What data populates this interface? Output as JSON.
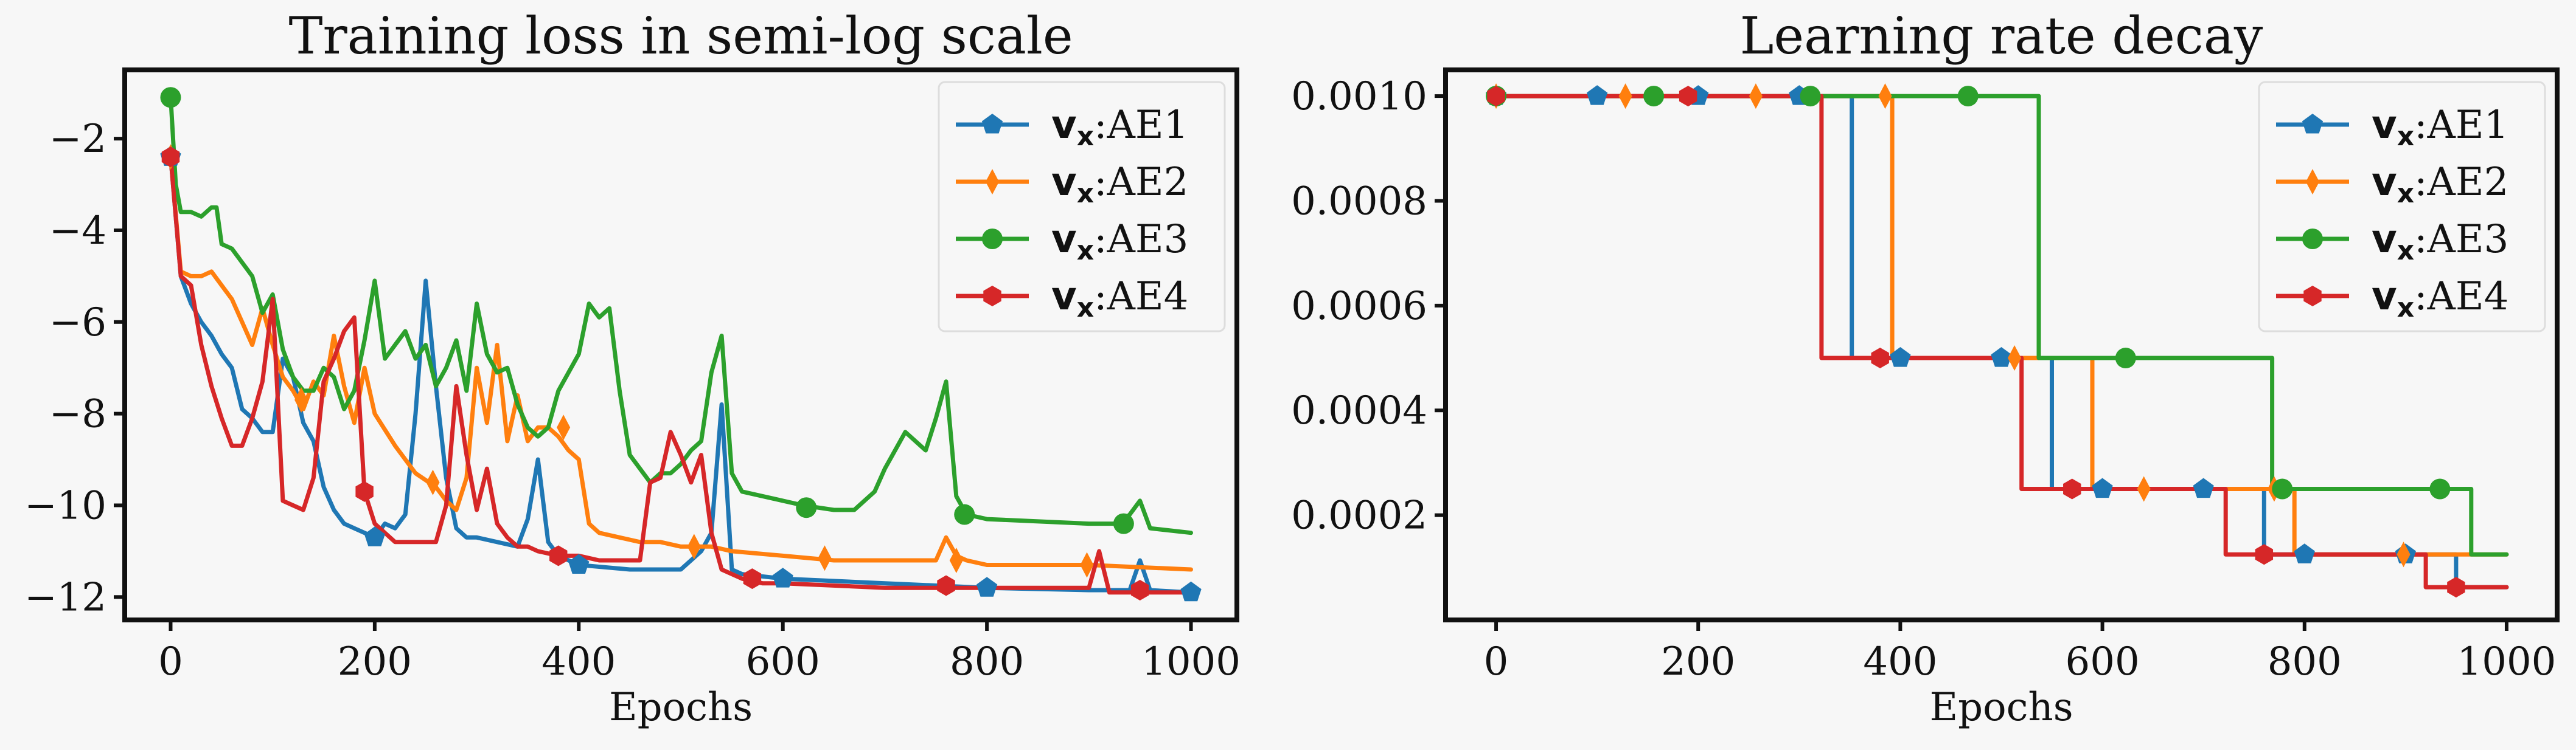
{
  "colors": {
    "AE1": "#1f77b4",
    "AE2": "#ff7f0e",
    "AE3": "#2ca02c",
    "AE4": "#d62728",
    "background": "#f7f7f7"
  },
  "chart_data": [
    {
      "type": "line",
      "title": "Training loss in semi-log scale",
      "xlabel": "Epochs",
      "ylabel": "",
      "xlim": [
        -45,
        1045
      ],
      "ylim": [
        -12.5,
        -0.5
      ],
      "xticks": [
        0,
        200,
        400,
        600,
        800,
        1000
      ],
      "yticks": [
        -12,
        -10,
        -8,
        -6,
        -4,
        -2
      ],
      "xtick_labels": [
        "0",
        "200",
        "400",
        "600",
        "800",
        "1000"
      ],
      "ytick_labels": [
        "−12",
        "−10",
        "−8",
        "−6",
        "−4",
        "−2"
      ],
      "grid": false,
      "legend": "top-right",
      "series": [
        {
          "name": "AE1",
          "legend_bold": "v",
          "legend_sub": "x",
          "legend_text": ":AE1",
          "marker": "pentagon",
          "color": "#1f77b4",
          "x": [
            0,
            10,
            20,
            30,
            40,
            50,
            60,
            70,
            80,
            90,
            100,
            110,
            120,
            130,
            140,
            150,
            160,
            170,
            180,
            190,
            200,
            210,
            220,
            230,
            240,
            250,
            260,
            270,
            280,
            290,
            300,
            320,
            340,
            350,
            360,
            370,
            380,
            400,
            450,
            500,
            520,
            530,
            540,
            550,
            560,
            600,
            700,
            800,
            900,
            940,
            950,
            960,
            1000
          ],
          "y": [
            -2.4,
            -5.0,
            -5.6,
            -6.0,
            -6.3,
            -6.7,
            -7.0,
            -7.9,
            -8.1,
            -8.4,
            -8.4,
            -6.8,
            -7.2,
            -8.2,
            -8.6,
            -9.6,
            -10.1,
            -10.4,
            -10.5,
            -10.6,
            -10.7,
            -10.4,
            -10.5,
            -10.2,
            -8.0,
            -5.1,
            -7.4,
            -9.4,
            -10.5,
            -10.7,
            -10.7,
            -10.8,
            -10.9,
            -10.3,
            -9.0,
            -10.8,
            -11.1,
            -11.3,
            -11.4,
            -11.4,
            -11.0,
            -10.6,
            -7.8,
            -11.4,
            -11.5,
            -11.6,
            -11.7,
            -11.8,
            -11.85,
            -11.85,
            -11.2,
            -11.85,
            -11.9
          ],
          "marker_x": [
            0,
            200,
            400,
            600,
            800,
            1000
          ],
          "marker_y": [
            -2.4,
            -10.7,
            -11.3,
            -11.6,
            -11.8,
            -11.9
          ]
        },
        {
          "name": "AE2",
          "legend_bold": "v",
          "legend_sub": "x",
          "legend_text": ":AE2",
          "marker": "diamond",
          "color": "#ff7f0e",
          "x": [
            0,
            10,
            20,
            30,
            40,
            50,
            60,
            70,
            80,
            90,
            100,
            110,
            120,
            130,
            140,
            150,
            160,
            170,
            180,
            190,
            200,
            220,
            240,
            260,
            270,
            280,
            290,
            300,
            310,
            320,
            330,
            340,
            350,
            360,
            370,
            380,
            390,
            400,
            410,
            420,
            440,
            460,
            480,
            500,
            530,
            550,
            600,
            650,
            700,
            750,
            760,
            770,
            780,
            800,
            900,
            1000
          ],
          "y": [
            -2.4,
            -4.9,
            -5.0,
            -5.0,
            -4.9,
            -5.2,
            -5.5,
            -6.0,
            -6.5,
            -5.7,
            -6.5,
            -7.2,
            -7.5,
            -7.9,
            -7.3,
            -7.6,
            -6.3,
            -7.4,
            -8.2,
            -7.0,
            -8.0,
            -8.7,
            -9.3,
            -9.6,
            -9.9,
            -10.1,
            -9.4,
            -7.0,
            -8.2,
            -6.5,
            -8.6,
            -7.6,
            -8.6,
            -8.3,
            -8.3,
            -8.5,
            -8.8,
            -9.0,
            -10.4,
            -10.6,
            -10.7,
            -10.8,
            -10.8,
            -10.9,
            -10.9,
            -11.0,
            -11.1,
            -11.2,
            -11.2,
            -11.2,
            -10.7,
            -11.1,
            -11.2,
            -11.3,
            -11.3,
            -11.4
          ],
          "marker_x": [
            0,
            128,
            257,
            385,
            513,
            641,
            770,
            898
          ],
          "marker_y": [
            -2.4,
            -7.7,
            -9.5,
            -8.3,
            -10.9,
            -11.15,
            -11.2,
            -11.3
          ]
        },
        {
          "name": "AE3",
          "legend_bold": "v",
          "legend_sub": "x",
          "legend_text": ":AE3",
          "marker": "circle",
          "color": "#2ca02c",
          "x": [
            0,
            5,
            10,
            20,
            30,
            40,
            45,
            50,
            60,
            70,
            80,
            90,
            100,
            110,
            120,
            130,
            140,
            150,
            160,
            170,
            180,
            190,
            200,
            210,
            220,
            230,
            240,
            250,
            260,
            270,
            280,
            290,
            300,
            310,
            320,
            330,
            340,
            350,
            360,
            370,
            380,
            400,
            410,
            420,
            430,
            440,
            450,
            460,
            470,
            480,
            490,
            500,
            510,
            520,
            530,
            540,
            550,
            560,
            600,
            620,
            650,
            670,
            690,
            700,
            720,
            740,
            750,
            760,
            770,
            780,
            800,
            900,
            930,
            940,
            950,
            960,
            1000
          ],
          "y": [
            -1.1,
            -3.0,
            -3.6,
            -3.6,
            -3.7,
            -3.5,
            -3.5,
            -4.3,
            -4.4,
            -4.7,
            -5.0,
            -5.8,
            -5.4,
            -6.6,
            -7.2,
            -7.5,
            -7.5,
            -7.0,
            -7.2,
            -7.9,
            -7.5,
            -6.4,
            -5.1,
            -6.8,
            -6.5,
            -6.2,
            -6.8,
            -6.5,
            -7.4,
            -7.0,
            -6.4,
            -7.5,
            -5.6,
            -6.7,
            -7.1,
            -7.0,
            -7.8,
            -8.3,
            -8.5,
            -8.3,
            -7.5,
            -6.7,
            -5.6,
            -5.9,
            -5.7,
            -7.5,
            -8.9,
            -9.2,
            -9.5,
            -9.3,
            -9.3,
            -9.1,
            -8.8,
            -8.6,
            -7.1,
            -6.3,
            -9.3,
            -9.7,
            -9.9,
            -10.0,
            -10.1,
            -10.1,
            -9.7,
            -9.2,
            -8.4,
            -8.8,
            -8.1,
            -7.3,
            -9.8,
            -10.2,
            -10.3,
            -10.4,
            -10.4,
            -10.2,
            -9.9,
            -10.5,
            -10.6
          ],
          "marker_x": [
            0,
            623,
            778,
            934
          ],
          "marker_y": [
            -1.1,
            -10.05,
            -10.2,
            -10.4
          ]
        },
        {
          "name": "AE4",
          "legend_bold": "v",
          "legend_sub": "x",
          "legend_text": ":AE4",
          "marker": "hexagon",
          "color": "#d62728",
          "x": [
            0,
            10,
            20,
            30,
            40,
            50,
            60,
            70,
            80,
            90,
            100,
            110,
            120,
            130,
            140,
            150,
            160,
            170,
            180,
            190,
            200,
            220,
            240,
            260,
            270,
            280,
            290,
            300,
            310,
            320,
            330,
            340,
            350,
            360,
            380,
            400,
            420,
            440,
            460,
            470,
            480,
            490,
            500,
            510,
            520,
            530,
            540,
            560,
            580,
            600,
            700,
            800,
            900,
            910,
            920,
            930,
            1000
          ],
          "y": [
            -2.4,
            -5.0,
            -5.2,
            -6.5,
            -7.4,
            -8.1,
            -8.7,
            -8.7,
            -8.1,
            -7.3,
            -5.5,
            -9.9,
            -10.0,
            -10.1,
            -9.4,
            -7.3,
            -6.8,
            -6.2,
            -5.9,
            -9.7,
            -10.4,
            -10.8,
            -10.8,
            -10.8,
            -10.0,
            -7.4,
            -8.9,
            -10.1,
            -9.2,
            -10.4,
            -10.7,
            -10.9,
            -10.9,
            -11.0,
            -11.1,
            -11.1,
            -11.2,
            -11.2,
            -11.2,
            -9.5,
            -9.4,
            -8.4,
            -8.9,
            -9.5,
            -8.9,
            -10.6,
            -11.4,
            -11.6,
            -11.7,
            -11.7,
            -11.8,
            -11.8,
            -11.8,
            -11.0,
            -11.9,
            -11.9,
            -11.9
          ],
          "marker_x": [
            0,
            190,
            380,
            570,
            760,
            950
          ],
          "marker_y": [
            -2.4,
            -9.7,
            -11.1,
            -11.6,
            -11.75,
            -11.85
          ]
        }
      ]
    },
    {
      "type": "line",
      "title": "Learning rate decay",
      "xlabel": "Epochs",
      "ylabel": "",
      "xlim": [
        -50,
        1050
      ],
      "ylim": [
        0.0,
        0.00105
      ],
      "xticks": [
        0,
        200,
        400,
        600,
        800,
        1000
      ],
      "yticks": [
        0.0002,
        0.0004,
        0.0006,
        0.0008,
        0.001
      ],
      "xtick_labels": [
        "0",
        "200",
        "400",
        "600",
        "800",
        "1000"
      ],
      "ytick_labels": [
        "0.0002",
        "0.0004",
        "0.0006",
        "0.0008",
        "0.0010"
      ],
      "grid": false,
      "legend": "top-right",
      "series": [
        {
          "name": "AE1",
          "legend_bold": "v",
          "legend_sub": "x",
          "legend_text": ":AE1",
          "marker": "pentagon",
          "color": "#1f77b4",
          "step": true,
          "x": [
            0,
            352,
            352,
            550,
            550,
            760,
            760,
            950,
            950,
            1000
          ],
          "y": [
            0.001,
            0.001,
            0.0005,
            0.0005,
            0.00025,
            0.00025,
            0.000125,
            0.000125,
            6.25e-05,
            6.25e-05
          ],
          "marker_x": [
            0,
            100,
            200,
            300,
            400,
            500,
            600,
            700,
            800,
            900
          ],
          "marker_y": [
            0.001,
            0.001,
            0.001,
            0.001,
            0.0005,
            0.0005,
            0.00025,
            0.00025,
            0.000125,
            0.000125
          ]
        },
        {
          "name": "AE2",
          "legend_bold": "v",
          "legend_sub": "x",
          "legend_text": ":AE2",
          "marker": "diamond",
          "color": "#ff7f0e",
          "step": true,
          "x": [
            0,
            392,
            392,
            590,
            590,
            790,
            790,
            1000
          ],
          "y": [
            0.001,
            0.001,
            0.0005,
            0.0005,
            0.00025,
            0.00025,
            0.000125,
            0.000125
          ],
          "marker_x": [
            0,
            128,
            257,
            385,
            513,
            641,
            770,
            898
          ],
          "marker_y": [
            0.001,
            0.001,
            0.001,
            0.001,
            0.0005,
            0.00025,
            0.00025,
            0.000125
          ]
        },
        {
          "name": "AE3",
          "legend_bold": "v",
          "legend_sub": "x",
          "legend_text": ":AE3",
          "marker": "circle",
          "color": "#2ca02c",
          "step": true,
          "x": [
            0,
            537,
            537,
            768,
            768,
            965,
            965,
            1000
          ],
          "y": [
            0.001,
            0.001,
            0.0005,
            0.0005,
            0.00025,
            0.00025,
            0.000125,
            0.000125
          ],
          "marker_x": [
            0,
            156,
            311,
            467,
            623,
            778,
            934
          ],
          "marker_y": [
            0.001,
            0.001,
            0.001,
            0.001,
            0.0005,
            0.00025,
            0.00025
          ]
        },
        {
          "name": "AE4",
          "legend_bold": "v",
          "legend_sub": "x",
          "legend_text": ":AE4",
          "marker": "hexagon",
          "color": "#d62728",
          "step": true,
          "x": [
            0,
            322,
            322,
            520,
            520,
            722,
            722,
            920,
            920,
            1000
          ],
          "y": [
            0.001,
            0.001,
            0.0005,
            0.0005,
            0.00025,
            0.00025,
            0.000125,
            0.000125,
            6.25e-05,
            6.25e-05
          ],
          "marker_x": [
            0,
            190,
            380,
            570,
            760,
            950
          ],
          "marker_y": [
            0.001,
            0.001,
            0.0005,
            0.00025,
            0.000125,
            6.25e-05
          ]
        }
      ]
    }
  ]
}
